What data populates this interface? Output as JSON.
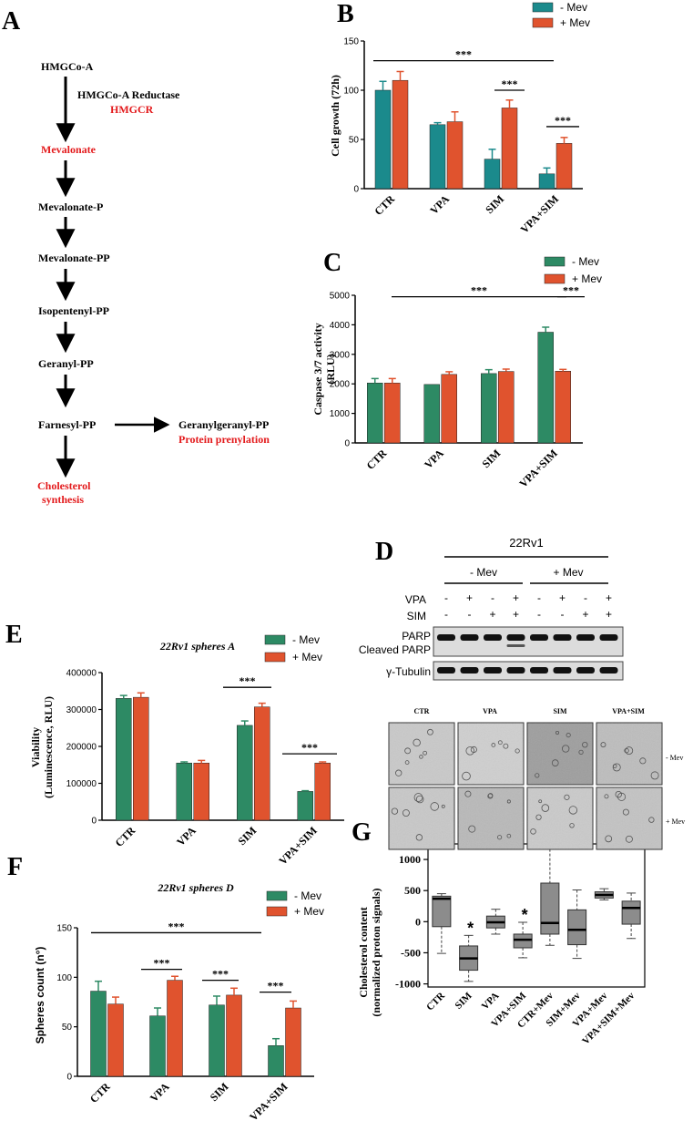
{
  "panel_letters": {
    "a": "A",
    "b": "B",
    "c": "C",
    "d": "D",
    "e": "E",
    "f": "F",
    "g": "G"
  },
  "colors": {
    "teal": "#1b8a8c",
    "green": "#2d8a64",
    "orange": "#e0532e",
    "red": "#e31a1c",
    "box": "#8c8c8c"
  },
  "pathway": {
    "steps": [
      "HMGCo-A",
      "Mevalonate",
      "Mevalonate-P",
      "Mevalonate-PP",
      "Isopentenyl-PP",
      "Geranyl-PP",
      "Farnesyl-PP"
    ],
    "enzyme": "HMGCo-A Reductase",
    "enzyme_gene": "HMGCR",
    "branch": "Geranylgeranyl-PP",
    "branch_outcome": "Protein prenylation",
    "end_line1": "Cholesterol",
    "end_line2": "synthesis"
  },
  "legend_labels": {
    "minus": "- Mev",
    "plus": "+ Mev"
  },
  "sig": "***",
  "chart_data": [
    {
      "panel": "B",
      "type": "bar",
      "categories": [
        "CTR",
        "VPA",
        "SIM",
        "VPA+SIM"
      ],
      "series": [
        {
          "name": "- Mev",
          "values": [
            100,
            65,
            30,
            15
          ],
          "errors": [
            9,
            2,
            10,
            6
          ]
        },
        {
          "name": "+ Mev",
          "values": [
            110,
            68,
            82,
            46
          ],
          "errors": [
            9,
            10,
            8,
            6
          ]
        }
      ],
      "title": "",
      "xlabel": "",
      "ylabel": "Cell growth (72h)",
      "ylim": [
        0,
        150
      ],
      "yticks": [
        0,
        50,
        100,
        150
      ],
      "legend": "top"
    },
    {
      "panel": "C",
      "type": "bar",
      "categories": [
        "CTR",
        "VPA",
        "SIM",
        "VPA+SIM"
      ],
      "series": [
        {
          "name": "- Mev",
          "values": [
            2030,
            1980,
            2350,
            3750
          ],
          "errors": [
            150,
            0,
            130,
            170
          ]
        },
        {
          "name": "+ Mev",
          "values": [
            2030,
            2320,
            2420,
            2430
          ],
          "errors": [
            150,
            90,
            80,
            60
          ]
        }
      ],
      "title": "",
      "xlabel": "",
      "ylabel_line1": "Caspase 3/7 activity",
      "ylabel_line2": "(RLU)",
      "ylim": [
        0,
        5000
      ],
      "yticks": [
        0,
        1000,
        2000,
        3000,
        4000,
        5000
      ],
      "legend": "top-right"
    },
    {
      "panel": "E",
      "type": "bar",
      "categories": [
        "CTR",
        "VPA",
        "SIM",
        "VPA+SIM"
      ],
      "series": [
        {
          "name": "- Mev",
          "values": [
            330000,
            155000,
            257000,
            78000
          ],
          "errors": [
            8000,
            3000,
            12000,
            2000
          ]
        },
        {
          "name": "+ Mev",
          "values": [
            333000,
            155000,
            307000,
            155000
          ],
          "errors": [
            12000,
            7000,
            10000,
            3000
          ]
        }
      ],
      "title": "22Rv1 spheres A",
      "xlabel": "",
      "ylabel_line1": "Viability",
      "ylabel_line2": "(Luminescence, RLU)",
      "ylim": [
        0,
        400000
      ],
      "yticks": [
        0,
        100000,
        200000,
        300000,
        400000
      ],
      "legend": "top-right"
    },
    {
      "panel": "F",
      "type": "bar",
      "categories": [
        "CTR",
        "VPA",
        "SIM",
        "VPA+SIM"
      ],
      "series": [
        {
          "name": "- Mev",
          "values": [
            86,
            61,
            72,
            31
          ],
          "errors": [
            10,
            8,
            9,
            7
          ]
        },
        {
          "name": "+ Mev",
          "values": [
            73,
            97,
            82,
            69
          ],
          "errors": [
            7,
            4,
            7,
            7
          ]
        }
      ],
      "title": "22Rv1 spheres D",
      "xlabel": "",
      "ylabel": "Spheres count (n°)",
      "ylim": [
        0,
        150
      ],
      "yticks": [
        0,
        50,
        100,
        150
      ],
      "legend": "top-right"
    },
    {
      "panel": "G",
      "type": "box",
      "categories": [
        "CTR",
        "SIM",
        "VPA",
        "VPA+SIM",
        "CTR+Mev",
        "SIM+Mev",
        "VPA+Mev",
        "VPA+SIM+Mev"
      ],
      "boxes": [
        {
          "min": -510,
          "q1": -80,
          "median": 370,
          "q3": 410,
          "max": 450,
          "star": false
        },
        {
          "min": -960,
          "q1": -780,
          "median": -590,
          "q3": -390,
          "max": -220,
          "star": true
        },
        {
          "min": -200,
          "q1": -100,
          "median": -10,
          "q3": 90,
          "max": 200,
          "star": false
        },
        {
          "min": -580,
          "q1": -420,
          "median": -290,
          "q3": -200,
          "max": -10,
          "star": true
        },
        {
          "min": -380,
          "q1": -200,
          "median": -20,
          "q3": 620,
          "max": 1240,
          "star": false
        },
        {
          "min": -590,
          "q1": -370,
          "median": -130,
          "q3": 190,
          "max": 510,
          "star": false
        },
        {
          "min": 350,
          "q1": 380,
          "median": 430,
          "q3": 480,
          "max": 530,
          "star": false
        },
        {
          "min": -270,
          "q1": -40,
          "median": 220,
          "q3": 330,
          "max": 460,
          "star": false
        }
      ],
      "ylabel_line1": "Cholesterol content",
      "ylabel_line2": "(normalized proton signals)",
      "ylim": [
        -1050,
        1250
      ],
      "yticks": [
        -1000,
        -500,
        0,
        500,
        1000
      ],
      "star_label": "*"
    }
  ],
  "blot": {
    "cell_line": "22Rv1",
    "groups": [
      "- Mev",
      "+ Mev"
    ],
    "row_vpa_label": "VPA",
    "row_sim_label": "SIM",
    "vpa": [
      "-",
      "+",
      "-",
      "+",
      "-",
      "+",
      "-",
      "+"
    ],
    "sim": [
      "-",
      "-",
      "+",
      "+",
      "-",
      "-",
      "+",
      "+"
    ],
    "band_label_parp": "PARP",
    "band_label_cleaved": "Cleaved PARP",
    "band_label_tubulin": "γ-Tubulin"
  },
  "micro": {
    "cols": [
      "CTR",
      "VPA",
      "SIM",
      "VPA+SIM"
    ],
    "rows": [
      "- Mev",
      "+ Mev"
    ]
  }
}
